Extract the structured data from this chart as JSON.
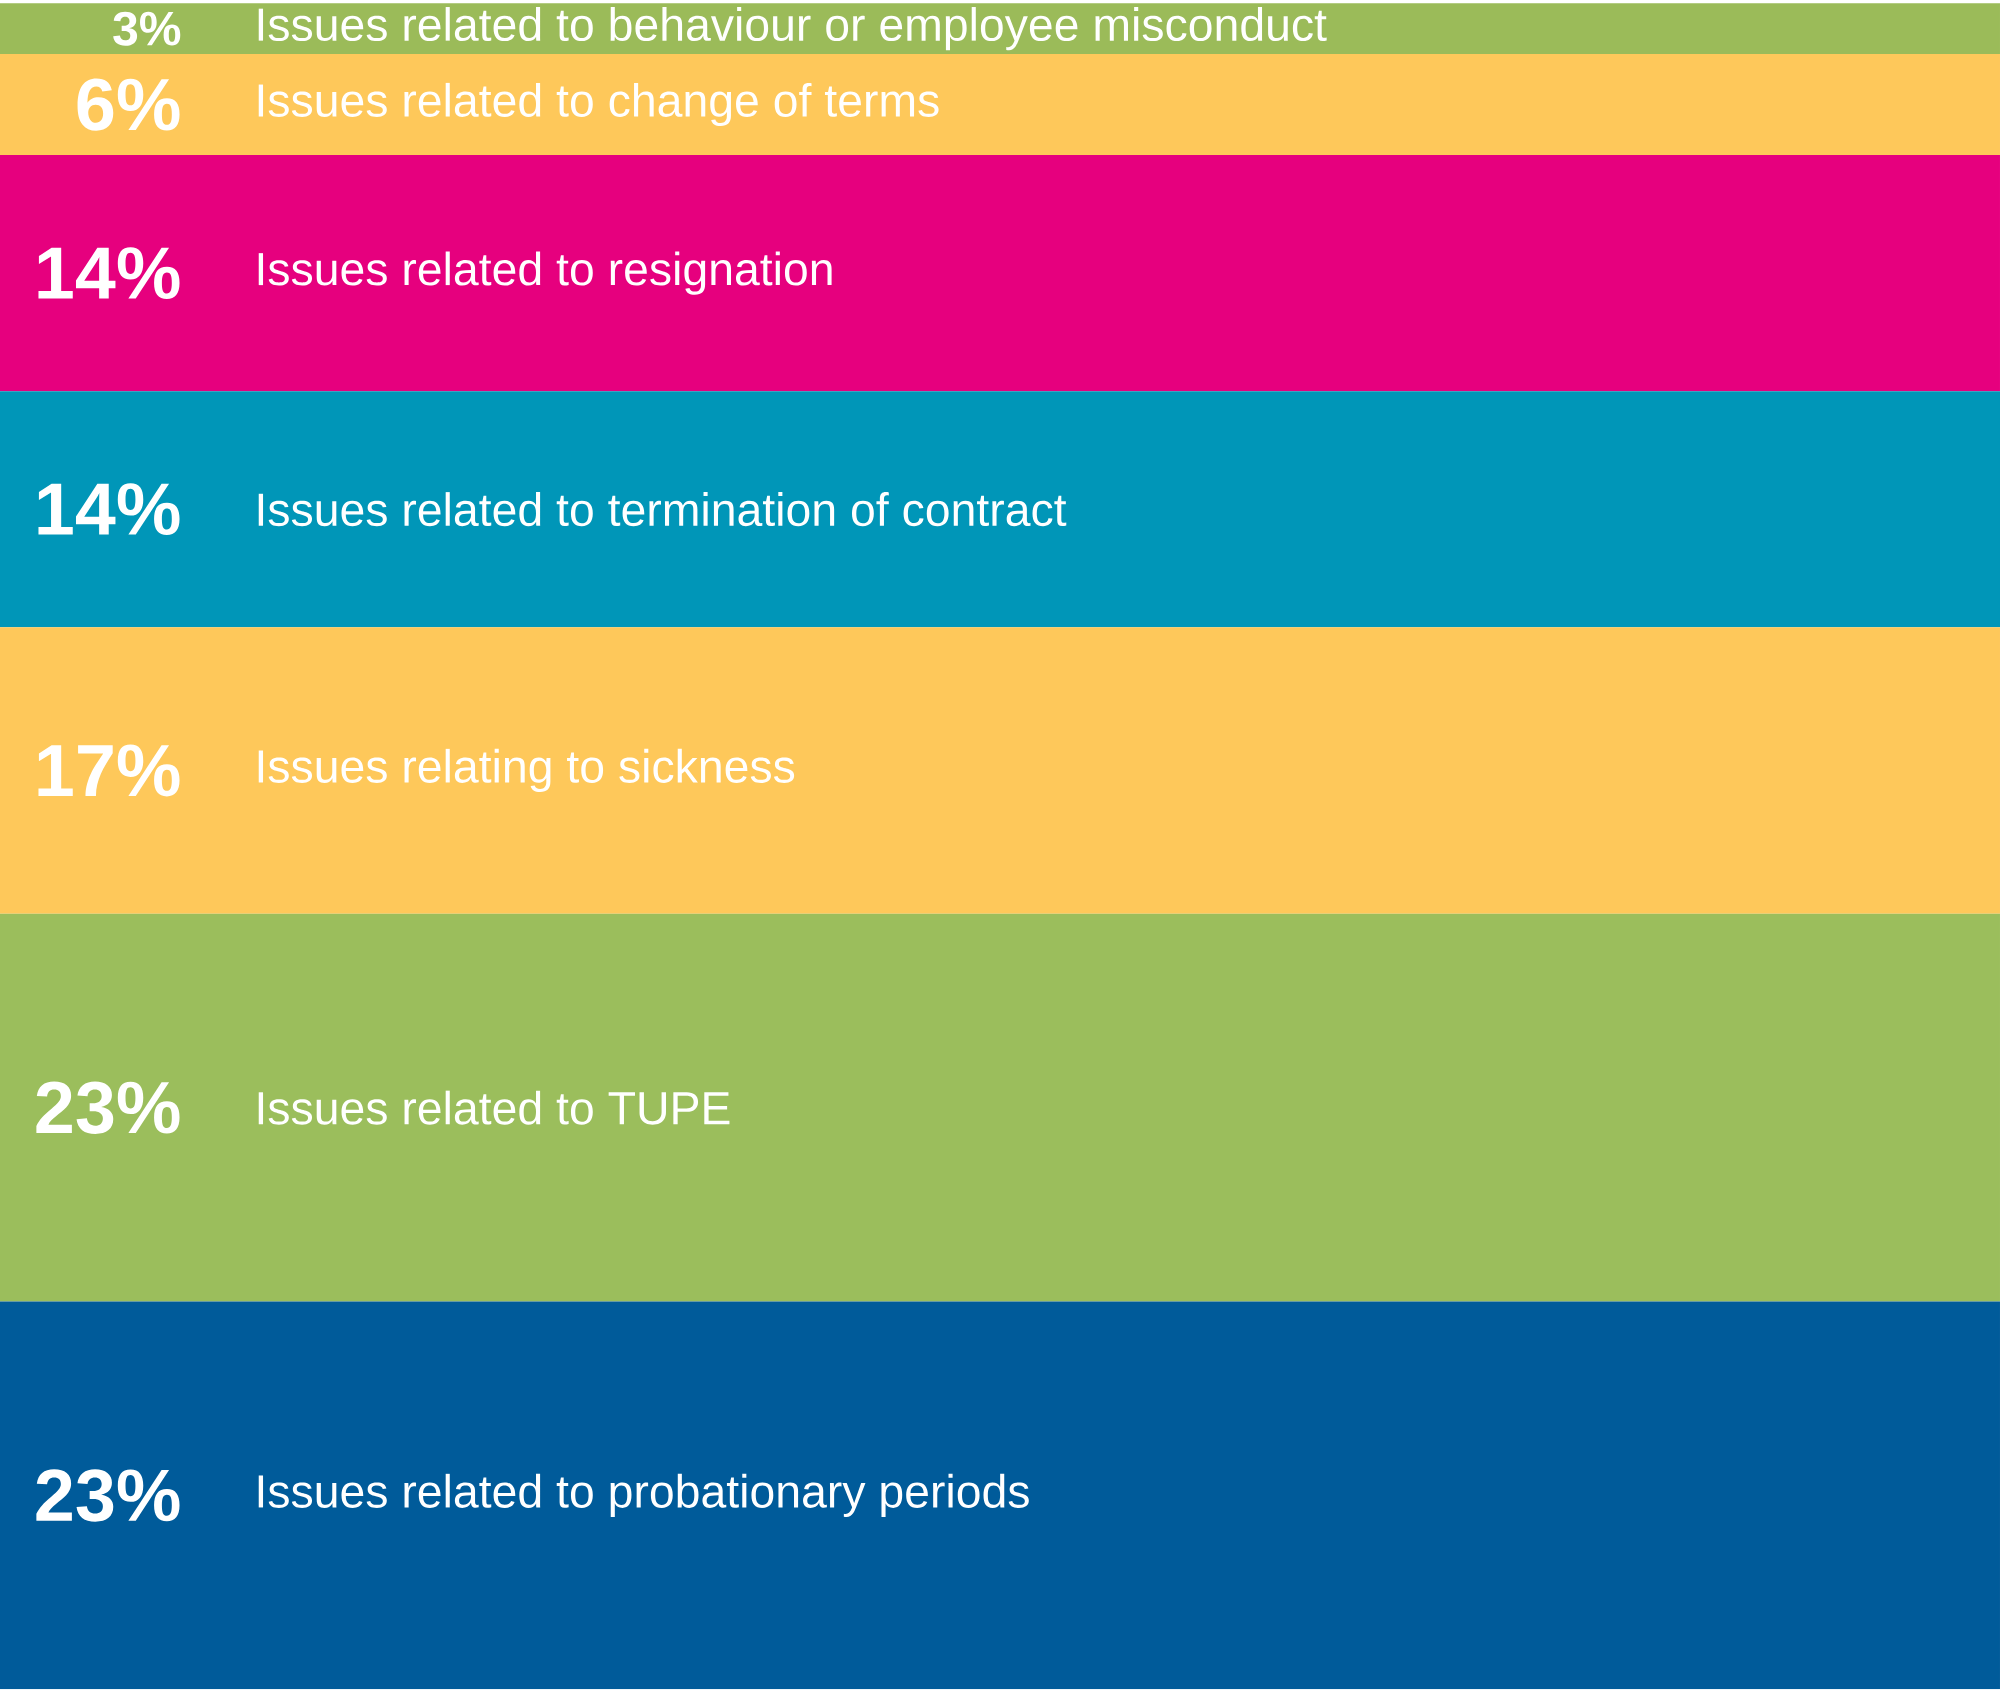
{
  "chart_data": {
    "type": "bar",
    "stacked": true,
    "categories": [
      null
    ],
    "series": [
      {
        "name": "Issues related to probationary periods",
        "color": "#005b9a",
        "values": [
          23
        ],
        "value_labels": [
          "23%"
        ]
      },
      {
        "name": "Issues related to TUPE",
        "color": "#9bbe5c",
        "values": [
          23
        ],
        "value_labels": [
          "23%"
        ]
      },
      {
        "name": "Issues relating to sickness",
        "color": "#fec85a",
        "values": [
          17
        ],
        "value_labels": [
          "17%"
        ]
      },
      {
        "name": "Issues related to termination of contract",
        "color": "#0096b8",
        "values": [
          14
        ],
        "value_labels": [
          "14%"
        ]
      },
      {
        "name": "Issues related to resignation",
        "color": "#e6007e",
        "values": [
          14
        ],
        "value_labels": [
          "14%"
        ]
      },
      {
        "name": "Issues related to change of terms",
        "color": "#fec85a",
        "values": [
          6
        ],
        "value_labels": [
          "6%"
        ]
      },
      {
        "name": "Issues related to behaviour or employee misconduct",
        "color": "#9bbb59",
        "values": [
          3
        ],
        "value_labels": [
          "3%"
        ]
      }
    ]
  }
}
